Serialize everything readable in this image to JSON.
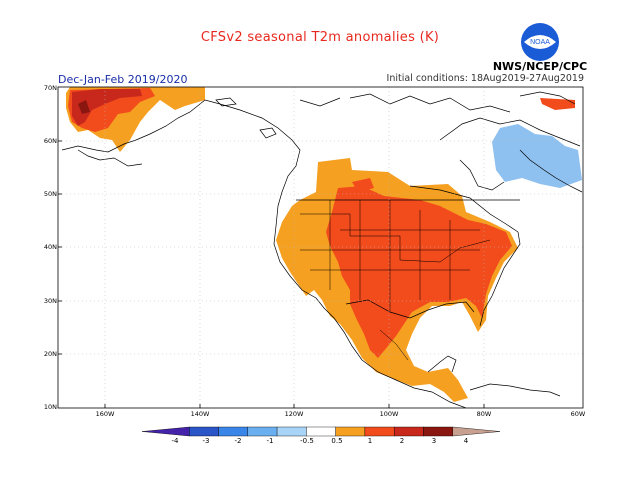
{
  "header": {
    "title": "CFSv2 seasonal T2m anomalies (K)",
    "season": "Dec-Jan-Feb 2019/2020",
    "initial_conditions": "Initial conditions: 18Aug2019-27Aug2019",
    "agency": "NWS/NCEP/CPC",
    "logo_text": "NOAA"
  },
  "map": {
    "region": "North America",
    "projection": "lat-lon",
    "lat_labels": [
      "70N",
      "60N",
      "50N",
      "40N",
      "30N",
      "20N",
      "10N"
    ],
    "lon_labels": [
      "160W",
      "140W",
      "120W",
      "100W",
      "80W",
      "60W"
    ],
    "anomaly_areas": [
      {
        "region": "Western Alaska",
        "category": "2 to 3",
        "color": "#c8281c"
      },
      {
        "region": "Alaska interior and coast",
        "category": "1 to 2",
        "color": "#f24b1c"
      },
      {
        "region": "Western United States, Mexico, Southern Canada",
        "category": "0.5 to 1",
        "color": "#f5a021"
      },
      {
        "region": "Central and Eastern United States",
        "category": "1 to 2",
        "color": "#f24b1c"
      },
      {
        "region": "Hudson Bay / Quebec",
        "category": "-1 to -0.5",
        "color": "#8ec0f0"
      }
    ]
  },
  "colorbar": {
    "labels": [
      "-4",
      "-3",
      "-2",
      "-1",
      "-0.5",
      "0.5",
      "1",
      "2",
      "3",
      "4"
    ],
    "colors": [
      "#4422aa",
      "#2a55c8",
      "#3a86e8",
      "#6ab0f0",
      "#a8d4f8",
      "#ffffff",
      "#f5a021",
      "#f24b1c",
      "#c8281c",
      "#8a1610",
      "#c8a090"
    ]
  }
}
